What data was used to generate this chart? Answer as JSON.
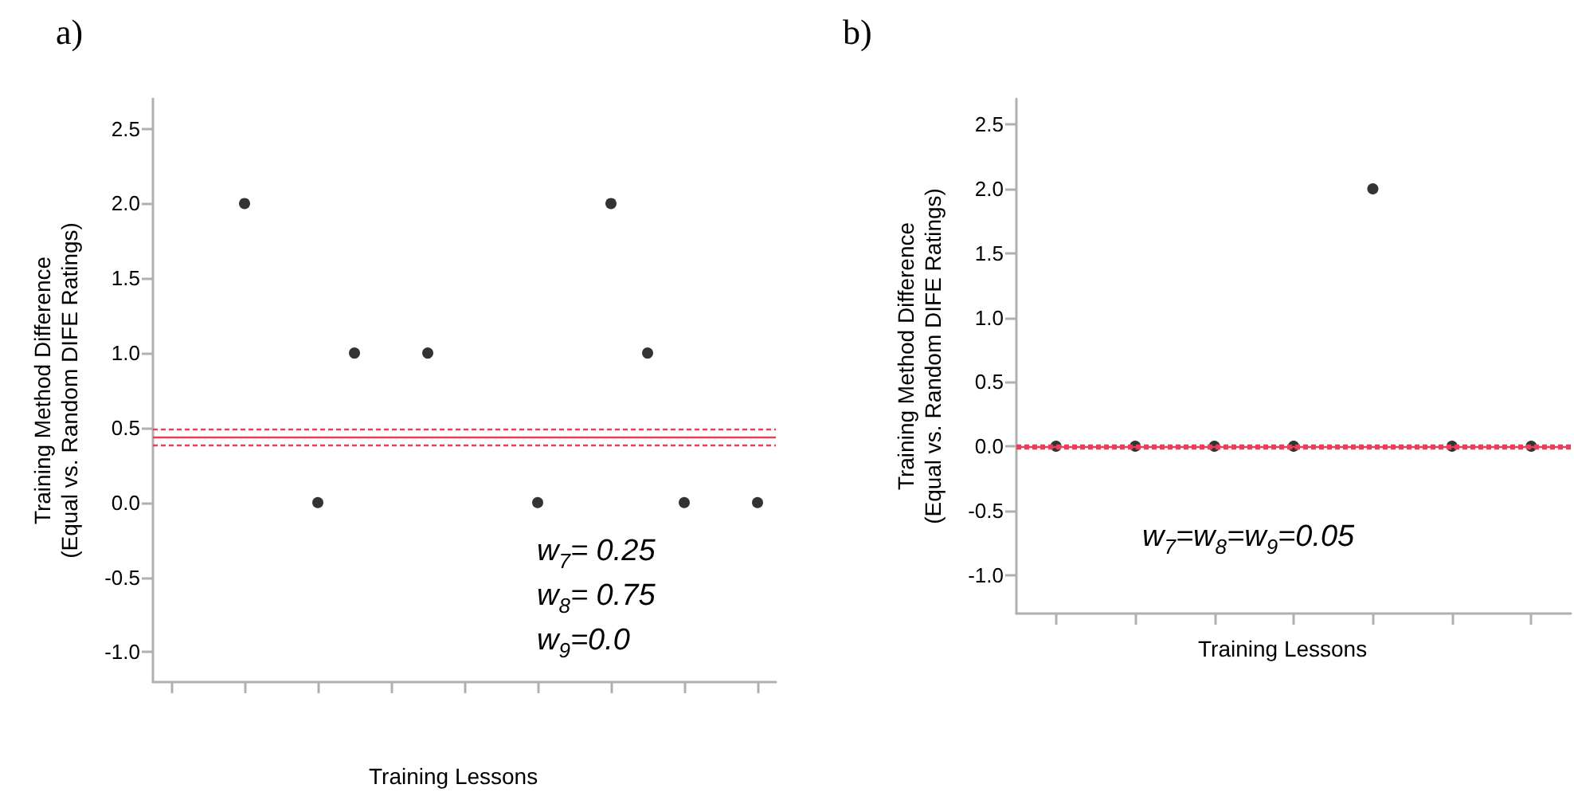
{
  "chart_data": [
    {
      "type": "scatter",
      "title": "a)",
      "xlabel": "Training Lessons",
      "ylabel": "Training Method Difference\n(Equal vs. Random DIFE Ratings)",
      "categories": [
        null,
        null,
        null,
        null,
        null,
        null,
        null,
        null,
        null,
        null,
        null,
        null,
        null,
        null,
        null,
        null,
        null
      ],
      "series": [
        {
          "color": "#000000",
          "values": [
            null,
            null,
            2.0,
            null,
            0.0,
            1.0,
            null,
            1.0,
            null,
            null,
            0.0,
            null,
            2.0,
            1.0,
            0.0,
            null,
            0.0
          ]
        }
      ],
      "ylim": [
        -1.2,
        2.7
      ],
      "yticks": [
        {
          "value": -1,
          "label": "-1.0"
        },
        {
          "value": -0.5,
          "label": "-0.5"
        },
        {
          "value": 0,
          "label": "0.0"
        },
        {
          "value": 0.5,
          "label": "0.5"
        },
        {
          "value": 1,
          "label": "1.0"
        },
        {
          "value": 1.5,
          "label": "1.5"
        },
        {
          "value": 2,
          "label": "2.0"
        },
        {
          "value": 2.5,
          "label": "2.5"
        }
      ],
      "tick_labels": "y",
      "marker": "circle",
      "grid": false,
      "legend": false,
      "ref_lines": [
        {
          "axis": "y",
          "value": 0.44,
          "color": "#e8405a",
          "line_style": "solid"
        },
        {
          "axis": "y",
          "value": 0.49,
          "color": "#e8405a",
          "line_style": "dashed"
        },
        {
          "axis": "y",
          "value": 0.39,
          "color": "#e8405a",
          "line_style": "dashed"
        }
      ],
      "annotations": [
        "w$_{7}$= 0.25",
        "w$_{8}$= 0.75",
        "w$_{9}$=0.0"
      ]
    },
    {
      "type": "scatter",
      "title": "b)",
      "xlabel": "Training Lessons",
      "ylabel": "Training Method Difference\n(Equal vs. Random DIFE Ratings)",
      "categories": [
        null,
        null,
        null,
        null,
        null,
        null,
        null
      ],
      "series": [
        {
          "color": "#000000",
          "values": [
            0.0,
            0.0,
            0.0,
            0.0,
            2.0,
            0.0,
            0.0
          ]
        }
      ],
      "ylim": [
        -1.3,
        2.7
      ],
      "yticks": [
        {
          "value": -1,
          "label": "-1.0"
        },
        {
          "value": -0.5,
          "label": "-0.5"
        },
        {
          "value": 0,
          "label": "0.0"
        },
        {
          "value": 0.5,
          "label": "0.5"
        },
        {
          "value": 1,
          "label": "1.0"
        },
        {
          "value": 1.5,
          "label": "1.5"
        },
        {
          "value": 2,
          "label": "2.0"
        },
        {
          "value": 2.5,
          "label": "2.5"
        }
      ],
      "tick_labels": "y",
      "marker": "circle",
      "grid": false,
      "legend": false,
      "ref_lines": [
        {
          "axis": "y",
          "value": 0.0,
          "color": "#e8405a",
          "line_style": "solid"
        },
        {
          "axis": "y",
          "value": 0.01,
          "color": "#e8405a",
          "line_style": "dashed"
        },
        {
          "axis": "y",
          "value": -0.01,
          "color": "#e8405a",
          "line_style": "dashed"
        }
      ],
      "annotations": [
        "w$_{7}$=w$_{8}$=w$_{9}$=0.05"
      ]
    }
  ]
}
